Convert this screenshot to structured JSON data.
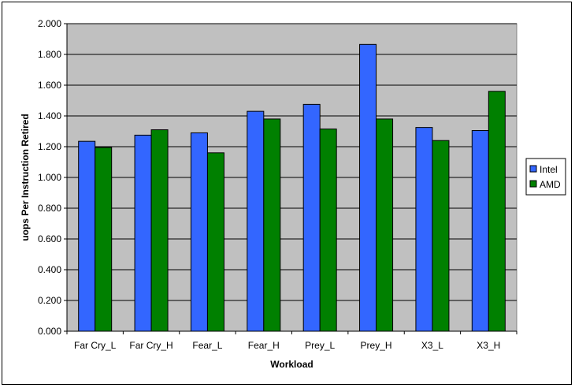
{
  "chart_data": {
    "type": "bar",
    "title": "",
    "xlabel": "Workload",
    "ylabel": "uops Per Instruction Retired",
    "ylim": [
      0,
      2
    ],
    "y_ticks": [
      "0.000",
      "0.200",
      "0.400",
      "0.600",
      "0.800",
      "1.000",
      "1.200",
      "1.400",
      "1.600",
      "1.800",
      "2.000"
    ],
    "categories": [
      "Far Cry_L",
      "Far Cry_H",
      "Fear_L",
      "Fear_H",
      "Prey_L",
      "Prey_H",
      "X3_L",
      "X3_H"
    ],
    "series": [
      {
        "name": "Intel",
        "color": "#3366ff",
        "values": [
          1.235,
          1.275,
          1.29,
          1.43,
          1.475,
          1.865,
          1.325,
          1.305
        ]
      },
      {
        "name": "AMD",
        "color": "#008000",
        "values": [
          1.195,
          1.31,
          1.16,
          1.38,
          1.315,
          1.38,
          1.24,
          1.56
        ]
      }
    ],
    "grid": true,
    "legend": "right",
    "plot_background": "#c0c0c0"
  }
}
